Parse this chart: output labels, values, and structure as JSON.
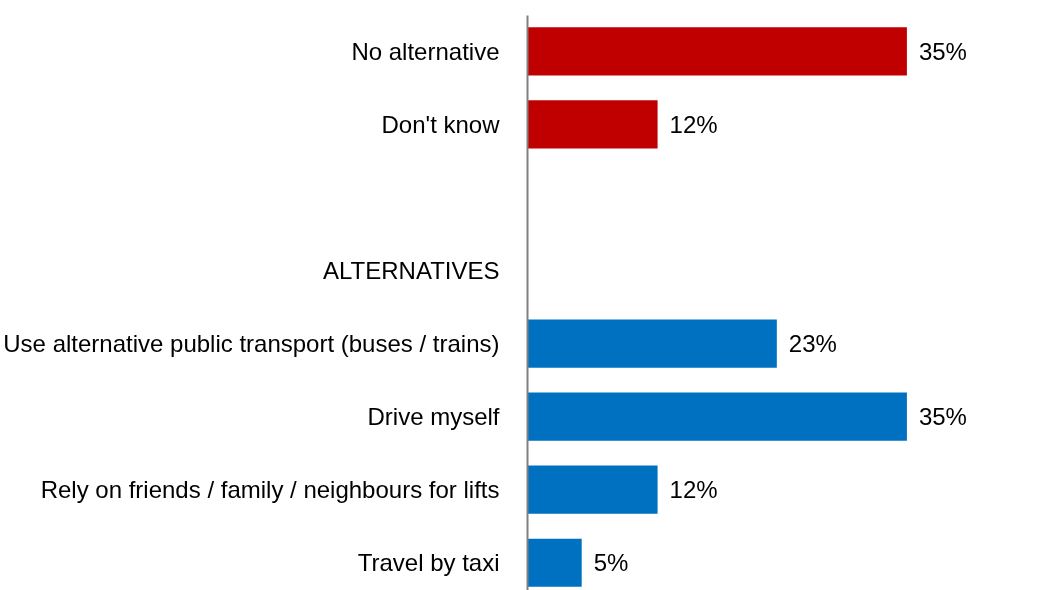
{
  "chart_data": {
    "type": "bar",
    "orientation": "horizontal",
    "categories": [
      "No alternative",
      "Don't know",
      null,
      "ALTERNATIVES",
      "Use alternative public transport (buses / trains)",
      "Drive myself",
      "Rely on friends / family / neighbours for lifts",
      "Travel by taxi"
    ],
    "values": [
      35,
      12,
      null,
      null,
      23,
      35,
      12,
      5
    ],
    "colors": [
      "#c00000",
      "#c00000",
      null,
      null,
      "#0070c0",
      "#0070c0",
      "#0070c0",
      "#0070c0"
    ],
    "value_labels": [
      "35%",
      "12%",
      null,
      null,
      "23%",
      "35%",
      "12%",
      "5%"
    ],
    "grid": false
  }
}
